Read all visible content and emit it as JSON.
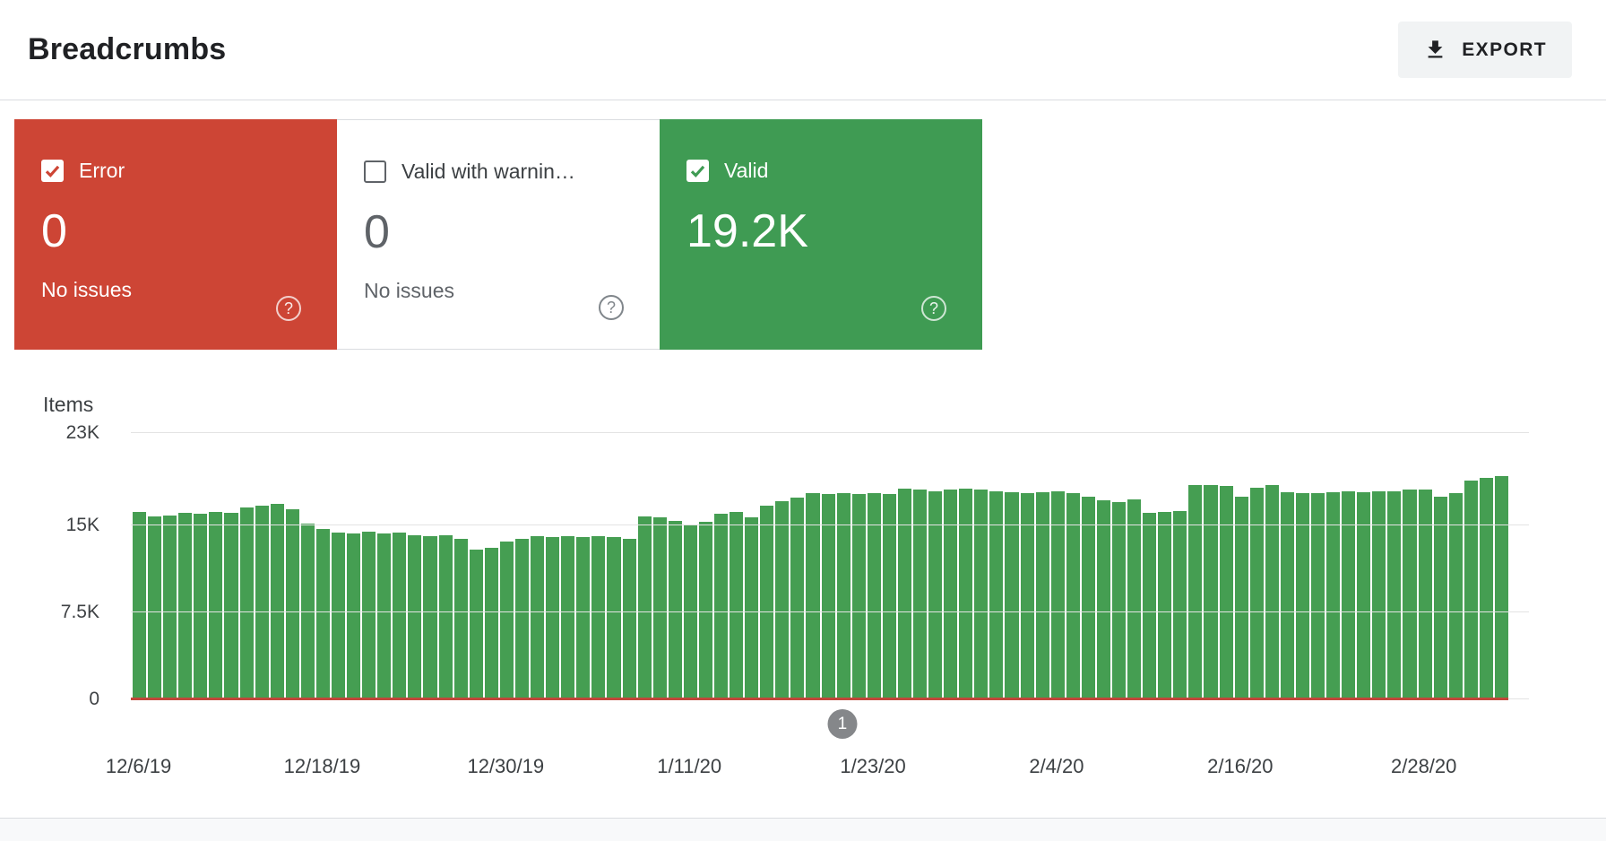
{
  "header": {
    "title": "Breadcrumbs",
    "export_label": "EXPORT"
  },
  "icons": {
    "export": "download-arrow-into-tray",
    "help": "?"
  },
  "colors": {
    "error_red": "#cd4535",
    "valid_green": "#3f9b53",
    "bar_green": "#459e52",
    "annotation_gray": "#85878a"
  },
  "cards": [
    {
      "id": "error",
      "label": "Error",
      "value": "0",
      "sub": "No issues",
      "checked": true
    },
    {
      "id": "valid-with-warnings",
      "label": "Valid with warnin…",
      "value": "0",
      "sub": "No issues",
      "checked": false
    },
    {
      "id": "valid",
      "label": "Valid",
      "value": "19.2K",
      "sub": "",
      "checked": true
    }
  ],
  "chart_data": {
    "type": "bar",
    "title": "Items",
    "ylabel": "Items",
    "ylim": [
      0,
      23000
    ],
    "grid": true,
    "yticks": [
      {
        "v": 0,
        "label": "0"
      },
      {
        "v": 7500,
        "label": "7.5K"
      },
      {
        "v": 15000,
        "label": "15K"
      },
      {
        "v": 23000,
        "label": "23K"
      }
    ],
    "x_tick_labels": [
      "12/6/19",
      "12/18/19",
      "12/30/19",
      "1/11/20",
      "1/23/20",
      "2/4/20",
      "2/16/20",
      "2/28/20"
    ],
    "x_tick_indices": [
      0,
      12,
      24,
      36,
      48,
      60,
      72,
      84
    ],
    "annotation": {
      "label": "1",
      "index": 46
    },
    "series": [
      {
        "name": "Valid",
        "values": [
          16200,
          15800,
          15900,
          16100,
          16000,
          16200,
          16100,
          16600,
          16700,
          16900,
          16400,
          15200,
          14700,
          14400,
          14300,
          14500,
          14300,
          14400,
          14200,
          14100,
          14200,
          13900,
          12900,
          13100,
          13600,
          13900,
          14100,
          14000,
          14100,
          14000,
          14100,
          14000,
          13900,
          15800,
          15700,
          15400,
          15000,
          15300,
          16000,
          16200,
          15700,
          16700,
          17100,
          17400,
          17800,
          17700,
          17800,
          17700,
          17800,
          17700,
          18200,
          18100,
          18000,
          18100,
          18200,
          18100,
          18000,
          17900,
          17800,
          17900,
          18000,
          17800,
          17500,
          17200,
          17000,
          17300,
          16100,
          16200,
          16300,
          18500,
          18500,
          18400,
          17500,
          18300,
          18500,
          17900,
          17800,
          17800,
          17900,
          18000,
          17900,
          18000,
          18000,
          18100,
          18100,
          17500,
          17800,
          18900,
          19100,
          19300
        ]
      },
      {
        "name": "Error",
        "values_constant": 0
      }
    ]
  }
}
